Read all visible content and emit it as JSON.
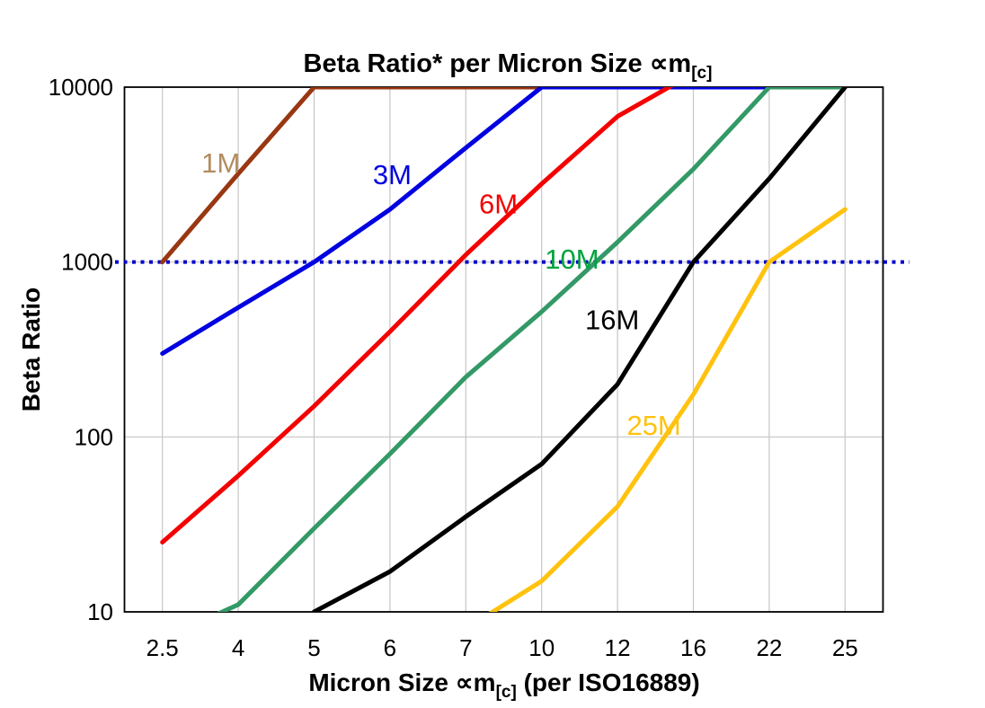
{
  "chart_data": {
    "type": "line",
    "title": "Beta Ratio* per Micron Size ∝m[c]",
    "title_parts": {
      "main": "Beta Ratio* per Micron Size ∝m",
      "sub": "[c]"
    },
    "xlabel_parts": {
      "main": "Micron Size ∝m",
      "sub": "[c]",
      "post": " (per ISO16889)"
    },
    "ylabel": "Beta Ratio",
    "x_axis_type": "categorical",
    "x_categories": [
      "2.5",
      "4",
      "5",
      "6",
      "7",
      "10",
      "12",
      "16",
      "22",
      "25"
    ],
    "y_scale": "log",
    "ylim": [
      10,
      10000
    ],
    "y_ticks": [
      10,
      100,
      1000,
      10000
    ],
    "grid": true,
    "legend": "inline-series-labels",
    "clip_note_color": "#C8C8C8",
    "reference_line": {
      "value": 1000,
      "color": "#0000CC",
      "style": "dotted"
    },
    "series": [
      {
        "name": "1M",
        "line_color": "#993712",
        "label_color": "#B38C5F",
        "values": [
          1000,
          3200,
          10000,
          10000,
          10000,
          10000,
          10000,
          10000,
          10000,
          10000
        ],
        "label_pos": {
          "x_index": 0.77,
          "value": 3650
        }
      },
      {
        "name": "3M",
        "line_color": "#0000E0",
        "label_color": "#0000E0",
        "values": [
          300,
          550,
          1000,
          2000,
          4500,
          10000,
          10000,
          10000,
          10000,
          10000
        ],
        "label_pos": {
          "x_index": 3.03,
          "value": 3130
        }
      },
      {
        "name": "6M",
        "line_color": "#F40000",
        "label_color": "#F40000",
        "values": [
          25,
          60,
          150,
          400,
          1100,
          2800,
          6800,
          12000,
          null,
          null
        ],
        "label_pos": {
          "x_index": 4.43,
          "value": 2140
        }
      },
      {
        "name": "10M",
        "line_color": "#339966",
        "label_color": "#00A33C",
        "values": [
          7,
          11,
          30,
          80,
          220,
          520,
          1300,
          3400,
          10000,
          10000
        ],
        "label_pos": {
          "x_index": 5.4,
          "value": 1030
        }
      },
      {
        "name": "16M",
        "line_color": "#000000",
        "label_color": "#000000",
        "values": [
          null,
          null,
          10,
          17,
          35,
          70,
          200,
          1000,
          3000,
          10000
        ],
        "label_pos": {
          "x_index": 5.93,
          "value": 465
        }
      },
      {
        "name": "25M",
        "line_color": "#FFC20E",
        "label_color": "#FFC20E",
        "values": [
          null,
          null,
          null,
          null,
          8,
          15,
          40,
          175,
          1000,
          2000
        ],
        "label_pos": {
          "x_index": 6.48,
          "value": 116
        }
      }
    ]
  }
}
